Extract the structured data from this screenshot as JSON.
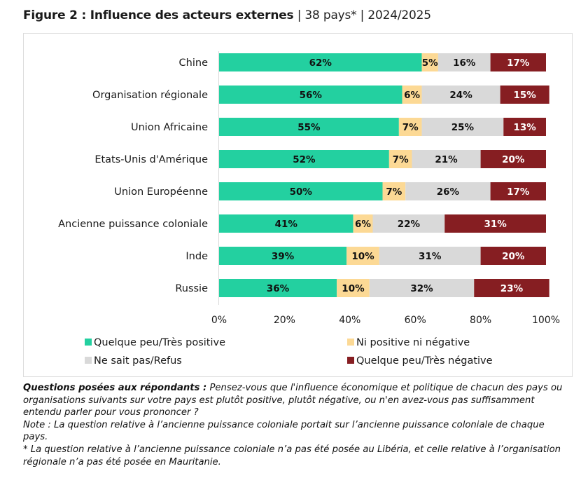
{
  "title": {
    "bold": "Figure 2 : Influence des acteurs externes",
    "rest": " | 38 pays* | 2024/2025"
  },
  "colors": {
    "positive": "#23d0a0",
    "neutral": "#fcd995",
    "dont_know": "#d9d9d9",
    "negative": "#861e22",
    "label_dark": "#111111",
    "label_light": "#ffffff"
  },
  "chart_data": {
    "type": "bar",
    "orientation": "horizontal",
    "stacked": true,
    "percent_stacked": true,
    "title": "Figure 2 : Influence des acteurs externes | 38 pays* | 2024/2025",
    "xlabel": "",
    "ylabel": "",
    "xlim": [
      0,
      100
    ],
    "xticks": [
      "0%",
      "20%",
      "40%",
      "60%",
      "80%",
      "100%"
    ],
    "grid": false,
    "legend_position": "bottom",
    "categories": [
      "Chine",
      "Organisation régionale",
      "Union Africaine",
      "Etats-Unis d'Amérique",
      "Union Européenne",
      "Ancienne puissance coloniale",
      "Inde",
      "Russie"
    ],
    "series": [
      {
        "name": "Quelque peu/Très positive",
        "color_key": "positive",
        "label_color_key": "label_dark",
        "values": [
          62,
          56,
          55,
          52,
          50,
          41,
          39,
          36
        ]
      },
      {
        "name": "Ni positive ni négative",
        "color_key": "neutral",
        "label_color_key": "label_dark",
        "values": [
          5,
          6,
          7,
          7,
          7,
          6,
          10,
          10
        ]
      },
      {
        "name": "Ne sait pas/Refus",
        "color_key": "dont_know",
        "label_color_key": "label_dark",
        "values": [
          16,
          24,
          25,
          21,
          26,
          22,
          31,
          32
        ]
      },
      {
        "name": "Quelque peu/Très négative",
        "color_key": "negative",
        "label_color_key": "label_light",
        "values": [
          17,
          15,
          13,
          20,
          17,
          31,
          20,
          23
        ]
      }
    ],
    "legend": [
      {
        "label": "Quelque peu/Très positive",
        "color_key": "positive"
      },
      {
        "label": "Ni positive ni négative",
        "color_key": "neutral"
      },
      {
        "label": "Ne sait pas/Refus",
        "color_key": "dont_know"
      },
      {
        "label": "Quelque peu/Très négative",
        "color_key": "negative"
      }
    ]
  },
  "notes": {
    "question_head": "Questions posées aux répondants :",
    "question_text": " Pensez-vous que l'influence économique et politique de chacun des pays ou organisations suivants sur votre pays est plutôt positive, plutôt négative, ou n'en avez-vous pas suffisamment entendu parler pour vous prononcer ?",
    "note": "Note : La question relative à l’ancienne puissance coloniale portait sur l’ancienne puissance coloniale de chaque pays.",
    "footnote": "* La question relative à l’ancienne puissance coloniale n’a pas été posée au Libéria, et celle relative à l’organisation régionale n’a pas été posée en Mauritanie."
  }
}
